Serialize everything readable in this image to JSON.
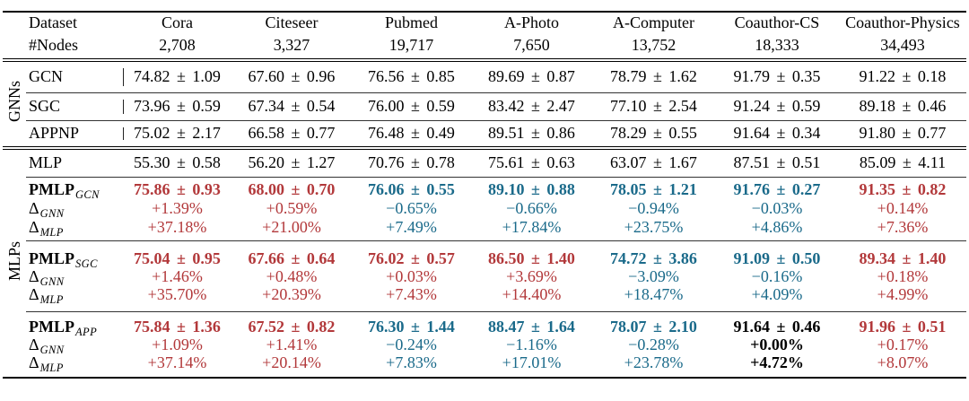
{
  "colors": {
    "red": "#b2383a",
    "blue": "#1a6a8a",
    "black": "#000000"
  },
  "header": {
    "dataset": "Dataset",
    "nodes": "#Nodes",
    "names": [
      "Cora",
      "Citeseer",
      "Pubmed",
      "A-Photo",
      "A-Computer",
      "Coauthor-CS",
      "Coauthor-Physics"
    ],
    "counts": [
      "2,708",
      "3,327",
      "19,717",
      "7,650",
      "13,752",
      "18,333",
      "34,493"
    ]
  },
  "gnns": {
    "label": "GNNs",
    "rows": [
      {
        "method": "GCN",
        "values": [
          "74.82 ± 1.09",
          "67.60 ± 0.96",
          "76.56 ± 0.85",
          "89.69 ± 0.87",
          "78.79 ± 1.62",
          "91.79 ± 0.35",
          "91.22 ± 0.18"
        ]
      },
      {
        "method": "SGC",
        "values": [
          "73.96 ± 0.59",
          "67.34 ± 0.54",
          "76.00 ± 0.59",
          "83.42 ± 2.47",
          "77.10 ± 2.54",
          "91.24 ± 0.59",
          "89.18 ± 0.46"
        ]
      },
      {
        "method": "APPNP",
        "values": [
          "75.02 ± 2.17",
          "66.58 ± 0.77",
          "76.48 ± 0.49",
          "89.51 ± 0.86",
          "78.29 ± 0.55",
          "91.64 ± 0.34",
          "91.80 ± 0.77"
        ]
      }
    ]
  },
  "mlps": {
    "label": "MLPs",
    "mlp": {
      "method": "MLP",
      "values": [
        "55.30 ± 0.58",
        "56.20 ± 1.27",
        "70.76 ± 0.78",
        "75.61 ± 0.63",
        "63.07 ± 1.67",
        "87.51 ± 0.51",
        "85.09 ± 4.11"
      ]
    },
    "pmlp": [
      {
        "method": "PMLP",
        "sub": "GCN",
        "values": [
          "75.86 ± 0.93",
          "68.00 ± 0.70",
          "76.06 ± 0.55",
          "89.10 ± 0.88",
          "78.05 ± 1.21",
          "91.76 ± 0.27",
          "91.35 ± 0.82"
        ],
        "delta_gnn_label": "Δ",
        "delta_gnn_sub": "GNN",
        "delta_gnn": [
          "+1.39%",
          "+0.59%",
          "−0.65%",
          "−0.66%",
          "−0.94%",
          "−0.03%",
          "+0.14%"
        ],
        "delta_mlp_label": "Δ",
        "delta_mlp_sub": "MLP",
        "delta_mlp": [
          "+37.18%",
          "+21.00%",
          "+7.49%",
          "+17.84%",
          "+23.75%",
          "+4.86%",
          "+7.36%"
        ],
        "tones": [
          "red",
          "red",
          "blue",
          "blue",
          "blue",
          "blue",
          "red"
        ]
      },
      {
        "method": "PMLP",
        "sub": "SGC",
        "values": [
          "75.04 ± 0.95",
          "67.66 ± 0.64",
          "76.02 ± 0.57",
          "86.50 ± 1.40",
          "74.72 ± 3.86",
          "91.09 ± 0.50",
          "89.34 ± 1.40"
        ],
        "delta_gnn_label": "Δ",
        "delta_gnn_sub": "GNN",
        "delta_gnn": [
          "+1.46%",
          "+0.48%",
          "+0.03%",
          "+3.69%",
          "−3.09%",
          "−0.16%",
          "+0.18%"
        ],
        "delta_mlp_label": "Δ",
        "delta_mlp_sub": "MLP",
        "delta_mlp": [
          "+35.70%",
          "+20.39%",
          "+7.43%",
          "+14.40%",
          "+18.47%",
          "+4.09%",
          "+4.99%"
        ],
        "tones": [
          "red",
          "red",
          "red",
          "red",
          "blue",
          "blue",
          "red"
        ]
      },
      {
        "method": "PMLP",
        "sub": "APP",
        "values": [
          "75.84 ± 1.36",
          "67.52 ± 0.82",
          "76.30 ± 1.44",
          "88.47 ± 1.64",
          "78.07 ± 2.10",
          "91.64 ± 0.46",
          "91.96 ± 0.51"
        ],
        "delta_gnn_label": "Δ",
        "delta_gnn_sub": "GNN",
        "delta_gnn": [
          "+1.09%",
          "+1.41%",
          "−0.24%",
          "−1.16%",
          "−0.28%",
          "+0.00%",
          "+0.17%"
        ],
        "delta_mlp_label": "Δ",
        "delta_mlp_sub": "MLP",
        "delta_mlp": [
          "+37.14%",
          "+20.14%",
          "+7.83%",
          "+17.01%",
          "+23.78%",
          "+4.72%",
          "+8.07%"
        ],
        "tones": [
          "red",
          "red",
          "blue",
          "blue",
          "blue",
          "black",
          "red"
        ]
      }
    ]
  }
}
